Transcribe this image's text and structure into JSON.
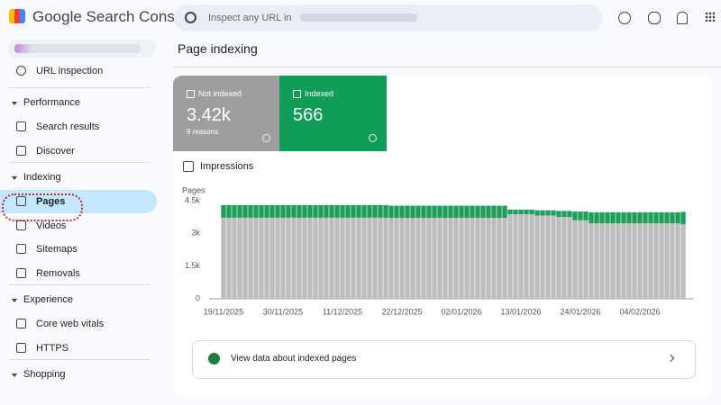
{
  "app": {
    "name": "Google Search Console",
    "search_placeholder": "Inspect any URL in"
  },
  "sidebar": {
    "top": [
      "URL inspection"
    ],
    "sections": [
      {
        "title": "Performance",
        "items": [
          "Search results",
          "Discover"
        ]
      },
      {
        "title": "Indexing",
        "items": [
          "Pages",
          "Videos",
          "Sitemaps",
          "Removals"
        ]
      },
      {
        "title": "Experience",
        "items": [
          "Core web vitals",
          "HTTPS"
        ]
      },
      {
        "title": "Shopping",
        "items": []
      }
    ]
  },
  "page": {
    "title": "Page indexing",
    "cards": [
      {
        "label": "Not indexed",
        "value": "3.42k",
        "sub": "9 reasons"
      },
      {
        "label": "Indexed",
        "value": "566"
      }
    ],
    "toggle": "Impressions",
    "link": "View data about indexed pages"
  },
  "chart_data": {
    "type": "stacked_bar",
    "y_label": "Pages",
    "categories": [
      "19/11/2025",
      null,
      null,
      null,
      null,
      null,
      null,
      null,
      null,
      null,
      null,
      "30/11/2025",
      null,
      null,
      null,
      null,
      null,
      null,
      null,
      null,
      null,
      null,
      "11/12/2025",
      null,
      null,
      null,
      null,
      null,
      null,
      null,
      null,
      null,
      null,
      "22/12/2025",
      null,
      null,
      null,
      null,
      null,
      null,
      null,
      null,
      null,
      null,
      "02/01/2026",
      null,
      null,
      null,
      null,
      null,
      null,
      null,
      null,
      null,
      null,
      "13/01/2026",
      null,
      null,
      null,
      null,
      null,
      null,
      null,
      null,
      null,
      null,
      "24/01/2026",
      null,
      null,
      null,
      null,
      null,
      null,
      null,
      null,
      null,
      null,
      "04/02/2026",
      null,
      null,
      null,
      null,
      null,
      null,
      null,
      null
    ],
    "series": [
      {
        "name": "Not indexed",
        "color": "#bdbdbd",
        "values": [
          3720,
          3720,
          3720,
          3720,
          3720,
          3720,
          3720,
          3720,
          3720,
          3720,
          3720,
          3720,
          3720,
          3720,
          3720,
          3720,
          3720,
          3720,
          3720,
          3720,
          3720,
          3720,
          3720,
          3720,
          3720,
          3720,
          3720,
          3720,
          3720,
          3720,
          3720,
          3710,
          3710,
          3710,
          3710,
          3710,
          3710,
          3710,
          3710,
          3710,
          3710,
          3710,
          3710,
          3710,
          3710,
          3710,
          3710,
          3710,
          3710,
          3710,
          3710,
          3710,
          3710,
          3880,
          3880,
          3880,
          3880,
          3880,
          3820,
          3820,
          3820,
          3820,
          3750,
          3750,
          3750,
          3600,
          3600,
          3600,
          3460,
          3460,
          3460,
          3460,
          3460,
          3460,
          3460,
          3460,
          3460,
          3460,
          3460,
          3460,
          3460,
          3460,
          3460,
          3460,
          3460,
          3420
        ]
      },
      {
        "name": "Indexed",
        "color": "#1e9e5a",
        "values": [
          580,
          580,
          580,
          580,
          580,
          580,
          580,
          580,
          580,
          580,
          580,
          580,
          580,
          580,
          580,
          580,
          580,
          580,
          580,
          580,
          580,
          580,
          580,
          580,
          580,
          580,
          580,
          580,
          580,
          580,
          580,
          560,
          560,
          560,
          560,
          560,
          560,
          560,
          560,
          560,
          560,
          560,
          560,
          560,
          560,
          560,
          560,
          560,
          560,
          560,
          560,
          560,
          560,
          210,
          210,
          210,
          210,
          210,
          240,
          240,
          240,
          240,
          280,
          280,
          280,
          400,
          400,
          400,
          510,
          510,
          510,
          510,
          510,
          510,
          510,
          510,
          510,
          510,
          510,
          510,
          510,
          510,
          510,
          510,
          510,
          566
        ]
      }
    ],
    "ylim": [
      0,
      4500
    ],
    "yticks": [
      0,
      {
        "value": 1500,
        "label": "1.5k"
      },
      {
        "value": 3000,
        "label": "3k"
      },
      {
        "value": 4500,
        "label": "4.5k"
      }
    ],
    "grid": false
  }
}
